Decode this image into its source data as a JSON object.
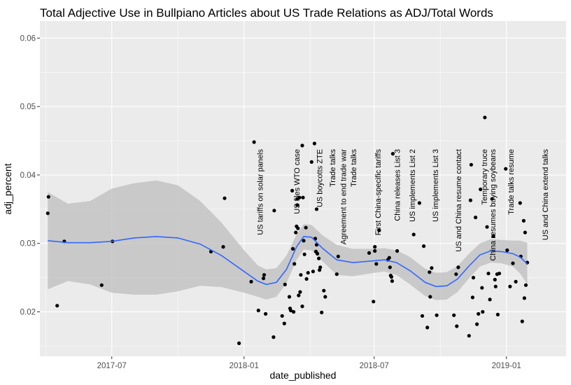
{
  "chart_data": {
    "type": "scatter",
    "title": "Total Adjective Use in Bullpiano Articles about US Trade Relations as ADJ/Total Words",
    "xlabel": "date_published",
    "ylabel": "adj_percent",
    "xlim": [
      "2017-03-23",
      "2019-03-25"
    ],
    "ylim": [
      0.0135,
      0.0625
    ],
    "x_ticks": [
      {
        "date": "2017-07-01",
        "label": "2017-07"
      },
      {
        "date": "2018-01-01",
        "label": "2018-01"
      },
      {
        "date": "2018-07-01",
        "label": "2018-07"
      },
      {
        "date": "2019-01-01",
        "label": "2019-01"
      }
    ],
    "y_ticks": [
      {
        "value": 0.02,
        "label": "0.02"
      },
      {
        "value": 0.03,
        "label": "0.03"
      },
      {
        "value": 0.04,
        "label": "0.04"
      },
      {
        "value": 0.05,
        "label": "0.05"
      },
      {
        "value": 0.06,
        "label": "0.06"
      }
    ],
    "grid": true,
    "colors": {
      "panel": "#ebebeb",
      "grid": "#ffffff",
      "point": "#000000",
      "smooth_line": "#3366ff",
      "ribbon": "#bdbdbd"
    },
    "points": [
      {
        "x": "2017-04-03",
        "y": 0.0344
      },
      {
        "x": "2017-04-04",
        "y": 0.0368
      },
      {
        "x": "2017-04-16",
        "y": 0.0209
      },
      {
        "x": "2017-04-26",
        "y": 0.0303
      },
      {
        "x": "2017-06-17",
        "y": 0.0239
      },
      {
        "x": "2017-07-02",
        "y": 0.0303
      },
      {
        "x": "2017-11-16",
        "y": 0.0288
      },
      {
        "x": "2017-12-03",
        "y": 0.0295
      },
      {
        "x": "2017-12-05",
        "y": 0.0366
      },
      {
        "x": "2017-12-25",
        "y": 0.0154
      },
      {
        "x": "2018-01-11",
        "y": 0.0244
      },
      {
        "x": "2018-01-15",
        "y": 0.0448
      },
      {
        "x": "2018-01-21",
        "y": 0.0202
      },
      {
        "x": "2018-01-28",
        "y": 0.0249
      },
      {
        "x": "2018-01-29",
        "y": 0.0254
      },
      {
        "x": "2018-01-31",
        "y": 0.0197
      },
      {
        "x": "2018-02-11",
        "y": 0.0163
      },
      {
        "x": "2018-02-12",
        "y": 0.0348
      },
      {
        "x": "2018-02-23",
        "y": 0.0194
      },
      {
        "x": "2018-02-26",
        "y": 0.0183
      },
      {
        "x": "2018-02-27",
        "y": 0.024
      },
      {
        "x": "2018-03-05",
        "y": 0.0222
      },
      {
        "x": "2018-03-06",
        "y": 0.0205
      },
      {
        "x": "2018-03-07",
        "y": 0.0202
      },
      {
        "x": "2018-03-09",
        "y": 0.0377
      },
      {
        "x": "2018-03-10",
        "y": 0.0292
      },
      {
        "x": "2018-03-11",
        "y": 0.02
      },
      {
        "x": "2018-03-12",
        "y": 0.027
      },
      {
        "x": "2018-03-14",
        "y": 0.0316
      },
      {
        "x": "2018-03-15",
        "y": 0.0325
      },
      {
        "x": "2018-03-16",
        "y": 0.0356
      },
      {
        "x": "2018-03-16",
        "y": 0.0365
      },
      {
        "x": "2018-03-17",
        "y": 0.0322
      },
      {
        "x": "2018-03-18",
        "y": 0.0224
      },
      {
        "x": "2018-03-19",
        "y": 0.0367
      },
      {
        "x": "2018-03-20",
        "y": 0.0229
      },
      {
        "x": "2018-03-21",
        "y": 0.0254
      },
      {
        "x": "2018-03-23",
        "y": 0.0443
      },
      {
        "x": "2018-03-23",
        "y": 0.0208
      },
      {
        "x": "2018-03-24",
        "y": 0.0367
      },
      {
        "x": "2018-03-25",
        "y": 0.0304
      },
      {
        "x": "2018-03-26",
        "y": 0.0284
      },
      {
        "x": "2018-03-28",
        "y": 0.0323
      },
      {
        "x": "2018-03-29",
        "y": 0.0248
      },
      {
        "x": "2018-03-31",
        "y": 0.0257
      },
      {
        "x": "2018-04-05",
        "y": 0.0419
      },
      {
        "x": "2018-04-07",
        "y": 0.0259
      },
      {
        "x": "2018-04-09",
        "y": 0.0446
      },
      {
        "x": "2018-04-10",
        "y": 0.0307
      },
      {
        "x": "2018-04-11",
        "y": 0.0288
      },
      {
        "x": "2018-04-12",
        "y": 0.035
      },
      {
        "x": "2018-04-12",
        "y": 0.0298
      },
      {
        "x": "2018-04-13",
        "y": 0.0285
      },
      {
        "x": "2018-04-15",
        "y": 0.0278
      },
      {
        "x": "2018-04-16",
        "y": 0.0261
      },
      {
        "x": "2018-04-17",
        "y": 0.0265
      },
      {
        "x": "2018-04-19",
        "y": 0.0199
      },
      {
        "x": "2018-04-22",
        "y": 0.0231
      },
      {
        "x": "2018-04-24",
        "y": 0.0222
      },
      {
        "x": "2018-05-10",
        "y": 0.0255
      },
      {
        "x": "2018-05-12",
        "y": 0.0281
      },
      {
        "x": "2018-06-30",
        "y": 0.0215
      },
      {
        "x": "2018-06-24",
        "y": 0.0286
      },
      {
        "x": "2018-07-02",
        "y": 0.0295
      },
      {
        "x": "2018-07-02",
        "y": 0.0289
      },
      {
        "x": "2018-07-04",
        "y": 0.027
      },
      {
        "x": "2018-07-08",
        "y": 0.0319
      },
      {
        "x": "2018-07-20",
        "y": 0.0276
      },
      {
        "x": "2018-07-22",
        "y": 0.0279
      },
      {
        "x": "2018-07-23",
        "y": 0.0265
      },
      {
        "x": "2018-07-24",
        "y": 0.0253
      },
      {
        "x": "2018-07-25",
        "y": 0.0251
      },
      {
        "x": "2018-07-26",
        "y": 0.0245
      },
      {
        "x": "2018-07-27",
        "y": 0.0431
      },
      {
        "x": "2018-08-02",
        "y": 0.0289
      },
      {
        "x": "2018-08-25",
        "y": 0.0313
      },
      {
        "x": "2018-09-02",
        "y": 0.0359
      },
      {
        "x": "2018-09-06",
        "y": 0.0194
      },
      {
        "x": "2018-09-08",
        "y": 0.0296
      },
      {
        "x": "2018-09-13",
        "y": 0.0177
      },
      {
        "x": "2018-09-16",
        "y": 0.0258
      },
      {
        "x": "2018-09-17",
        "y": 0.0222
      },
      {
        "x": "2018-09-19",
        "y": 0.0264
      },
      {
        "x": "2018-09-26",
        "y": 0.0195
      },
      {
        "x": "2018-10-20",
        "y": 0.0195
      },
      {
        "x": "2018-10-23",
        "y": 0.0255
      },
      {
        "x": "2018-10-24",
        "y": 0.0179
      },
      {
        "x": "2018-10-26",
        "y": 0.0265
      },
      {
        "x": "2018-11-10",
        "y": 0.0165
      },
      {
        "x": "2018-11-12",
        "y": 0.0363
      },
      {
        "x": "2018-11-13",
        "y": 0.0415
      },
      {
        "x": "2018-11-15",
        "y": 0.0221
      },
      {
        "x": "2018-11-16",
        "y": 0.025
      },
      {
        "x": "2018-11-19",
        "y": 0.0338
      },
      {
        "x": "2018-11-21",
        "y": 0.0182
      },
      {
        "x": "2018-11-23",
        "y": 0.0197
      },
      {
        "x": "2018-11-26",
        "y": 0.0379
      },
      {
        "x": "2018-11-28",
        "y": 0.0235
      },
      {
        "x": "2018-11-29",
        "y": 0.02
      },
      {
        "x": "2018-12-02",
        "y": 0.0484
      },
      {
        "x": "2018-12-05",
        "y": 0.0324
      },
      {
        "x": "2018-12-07",
        "y": 0.0256
      },
      {
        "x": "2018-12-09",
        "y": 0.0218
      },
      {
        "x": "2018-12-12",
        "y": 0.0365
      },
      {
        "x": "2018-12-14",
        "y": 0.0311
      },
      {
        "x": "2018-12-16",
        "y": 0.0247
      },
      {
        "x": "2018-12-17",
        "y": 0.0237
      },
      {
        "x": "2018-12-19",
        "y": 0.0255
      },
      {
        "x": "2018-12-20",
        "y": 0.0196
      },
      {
        "x": "2018-12-22",
        "y": 0.0256
      },
      {
        "x": "2018-12-31",
        "y": 0.0409
      },
      {
        "x": "2019-01-02",
        "y": 0.029
      },
      {
        "x": "2019-01-06",
        "y": 0.0237
      },
      {
        "x": "2019-01-10",
        "y": 0.0271
      },
      {
        "x": "2019-01-14",
        "y": 0.0244
      },
      {
        "x": "2019-01-20",
        "y": 0.0359
      },
      {
        "x": "2019-01-21",
        "y": 0.0281
      },
      {
        "x": "2019-01-23",
        "y": 0.0186
      },
      {
        "x": "2019-01-25",
        "y": 0.0333
      },
      {
        "x": "2019-01-26",
        "y": 0.022
      },
      {
        "x": "2019-01-27",
        "y": 0.0316
      },
      {
        "x": "2019-01-28",
        "y": 0.0239
      },
      {
        "x": "2019-01-30",
        "y": 0.0272
      }
    ],
    "smooth": [
      {
        "x": "2017-04-03",
        "y": 0.0304,
        "lo": 0.0233,
        "hi": 0.0375
      },
      {
        "x": "2017-05-01",
        "y": 0.0301,
        "lo": 0.0245,
        "hi": 0.0358
      },
      {
        "x": "2017-06-01",
        "y": 0.0301,
        "lo": 0.024,
        "hi": 0.0362
      },
      {
        "x": "2017-07-01",
        "y": 0.0303,
        "lo": 0.0228,
        "hi": 0.038
      },
      {
        "x": "2017-08-01",
        "y": 0.0308,
        "lo": 0.0225,
        "hi": 0.0388
      },
      {
        "x": "2017-09-01",
        "y": 0.031,
        "lo": 0.0225,
        "hi": 0.0392
      },
      {
        "x": "2017-10-01",
        "y": 0.0308,
        "lo": 0.023,
        "hi": 0.0385
      },
      {
        "x": "2017-11-01",
        "y": 0.0299,
        "lo": 0.0238,
        "hi": 0.0362
      },
      {
        "x": "2017-12-01",
        "y": 0.0282,
        "lo": 0.0236,
        "hi": 0.033
      },
      {
        "x": "2018-01-01",
        "y": 0.0259,
        "lo": 0.0228,
        "hi": 0.029
      },
      {
        "x": "2018-01-20",
        "y": 0.0245,
        "lo": 0.0222,
        "hi": 0.0268
      },
      {
        "x": "2018-02-01",
        "y": 0.024,
        "lo": 0.0218,
        "hi": 0.0262
      },
      {
        "x": "2018-02-15",
        "y": 0.0243,
        "lo": 0.0222,
        "hi": 0.0264
      },
      {
        "x": "2018-03-01",
        "y": 0.0262,
        "lo": 0.0242,
        "hi": 0.0282
      },
      {
        "x": "2018-03-15",
        "y": 0.0295,
        "lo": 0.0276,
        "hi": 0.0313
      },
      {
        "x": "2018-03-25",
        "y": 0.031,
        "lo": 0.0291,
        "hi": 0.0328
      },
      {
        "x": "2018-04-05",
        "y": 0.0309,
        "lo": 0.029,
        "hi": 0.0327
      },
      {
        "x": "2018-04-20",
        "y": 0.0293,
        "lo": 0.0274,
        "hi": 0.0312
      },
      {
        "x": "2018-05-10",
        "y": 0.0276,
        "lo": 0.0254,
        "hi": 0.0298
      },
      {
        "x": "2018-06-01",
        "y": 0.0272,
        "lo": 0.0252,
        "hi": 0.0292
      },
      {
        "x": "2018-06-25",
        "y": 0.0274,
        "lo": 0.0256,
        "hi": 0.0292
      },
      {
        "x": "2018-07-15",
        "y": 0.0276,
        "lo": 0.0259,
        "hi": 0.0293
      },
      {
        "x": "2018-08-01",
        "y": 0.0272,
        "lo": 0.0254,
        "hi": 0.029
      },
      {
        "x": "2018-08-20",
        "y": 0.026,
        "lo": 0.024,
        "hi": 0.028
      },
      {
        "x": "2018-09-10",
        "y": 0.0243,
        "lo": 0.0223,
        "hi": 0.0263
      },
      {
        "x": "2018-09-25",
        "y": 0.0237,
        "lo": 0.0217,
        "hi": 0.0257
      },
      {
        "x": "2018-10-10",
        "y": 0.0238,
        "lo": 0.0218,
        "hi": 0.0258
      },
      {
        "x": "2018-10-25",
        "y": 0.0248,
        "lo": 0.0229,
        "hi": 0.0267
      },
      {
        "x": "2018-11-10",
        "y": 0.0267,
        "lo": 0.0249,
        "hi": 0.0285
      },
      {
        "x": "2018-11-25",
        "y": 0.0283,
        "lo": 0.0266,
        "hi": 0.03
      },
      {
        "x": "2018-12-10",
        "y": 0.0289,
        "lo": 0.0272,
        "hi": 0.0306
      },
      {
        "x": "2018-12-25",
        "y": 0.0288,
        "lo": 0.0271,
        "hi": 0.0305
      },
      {
        "x": "2019-01-10",
        "y": 0.0285,
        "lo": 0.0266,
        "hi": 0.0304
      },
      {
        "x": "2019-01-20",
        "y": 0.028,
        "lo": 0.0256,
        "hi": 0.0304
      },
      {
        "x": "2019-01-30",
        "y": 0.027,
        "lo": 0.024,
        "hi": 0.0301
      }
    ],
    "annotations": [
      {
        "label": "US tariffs on solar panels",
        "x": "2018-01-23"
      },
      {
        "label": "US files WTO case",
        "x": "2018-03-15"
      },
      {
        "label": "US boycotts ZTE",
        "x": "2018-04-16"
      },
      {
        "label": "Trade talks",
        "x": "2018-05-04"
      },
      {
        "label": "Agreement to end trade war",
        "x": "2018-05-19"
      },
      {
        "label": "Trade talks",
        "x": "2018-06-02"
      },
      {
        "label": "First China-specific tariffs",
        "x": "2018-07-06"
      },
      {
        "label": "China releases List 3",
        "x": "2018-08-02"
      },
      {
        "label": "US implements List 2",
        "x": "2018-08-23"
      },
      {
        "label": "US implements List 3",
        "x": "2018-09-24"
      },
      {
        "label": "US and China resume contact",
        "x": "2018-10-26"
      },
      {
        "label": "Temporary truce",
        "x": "2018-12-01"
      },
      {
        "label": "China resumes buying soybeans",
        "x": "2018-12-13"
      },
      {
        "label": "Trade talks resume",
        "x": "2019-01-07"
      },
      {
        "label": "US and China extend talks",
        "x": "2019-02-24"
      }
    ]
  }
}
